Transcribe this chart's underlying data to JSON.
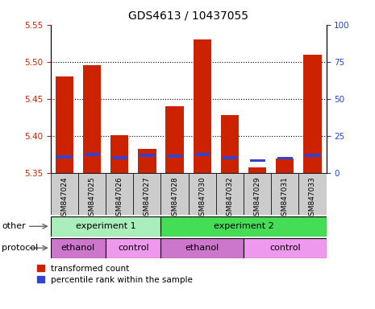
{
  "title": "GDS4613 / 10437055",
  "samples": [
    "GSM847024",
    "GSM847025",
    "GSM847026",
    "GSM847027",
    "GSM847028",
    "GSM847030",
    "GSM847032",
    "GSM847029",
    "GSM847031",
    "GSM847033"
  ],
  "red_values": [
    5.48,
    5.495,
    5.401,
    5.383,
    5.44,
    5.53,
    5.428,
    5.358,
    5.37,
    5.51
  ],
  "blue_values": [
    5.372,
    5.375,
    5.371,
    5.374,
    5.373,
    5.375,
    5.371,
    5.367,
    5.37,
    5.374
  ],
  "ylim_left": [
    5.35,
    5.55
  ],
  "yticks_left": [
    5.35,
    5.4,
    5.45,
    5.5,
    5.55
  ],
  "yticks_right": [
    0,
    25,
    50,
    75,
    100
  ],
  "ylim_right": [
    0,
    100
  ],
  "bar_color": "#cc2200",
  "blue_color": "#3344cc",
  "experiment_groups": [
    {
      "label": "experiment 1",
      "start": 0,
      "end": 4,
      "color": "#aaeebb"
    },
    {
      "label": "experiment 2",
      "start": 4,
      "end": 10,
      "color": "#44dd55"
    }
  ],
  "protocol_groups": [
    {
      "label": "ethanol",
      "start": 0,
      "end": 2,
      "color": "#cc77cc"
    },
    {
      "label": "control",
      "start": 2,
      "end": 4,
      "color": "#ee99ee"
    },
    {
      "label": "ethanol",
      "start": 4,
      "end": 7,
      "color": "#cc77cc"
    },
    {
      "label": "control",
      "start": 7,
      "end": 10,
      "color": "#ee99ee"
    }
  ],
  "label_other": "other",
  "label_protocol": "protocol",
  "legend_red": "transformed count",
  "legend_blue": "percentile rank within the sample",
  "tick_label_color_left": "#cc2200",
  "tick_label_color_right": "#2244cc",
  "bar_width": 0.65,
  "baseline": 5.35,
  "xtick_bg": "#cccccc",
  "grid_dotted_at": [
    5.4,
    5.45,
    5.5
  ]
}
